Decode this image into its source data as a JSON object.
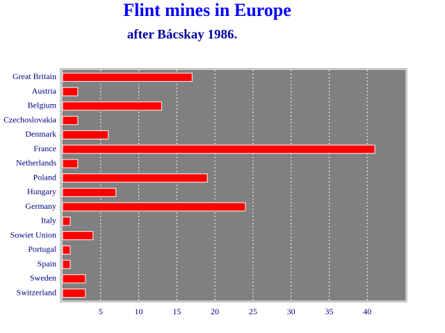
{
  "chart_data": {
    "type": "bar",
    "orientation": "horizontal",
    "title": "Flint mines in Europe",
    "subtitle": "after Bácskay 1986.",
    "categories": [
      "Great Britain",
      "Austria",
      "Belgium",
      "Czechoslovakia",
      "Denmark",
      "France",
      "Netherlands",
      "Poland",
      "Hungary",
      "Germany",
      "Italy",
      "Sowiet Union",
      "Portugal",
      "Spain",
      "Sweden",
      "Switzerland"
    ],
    "values": [
      17,
      2,
      13,
      2,
      6,
      41,
      2,
      19,
      7,
      24,
      1,
      4,
      1,
      1,
      3,
      3
    ],
    "color": "#ff0000",
    "xlim": [
      0,
      45
    ],
    "xticks": [
      5,
      10,
      15,
      20,
      25,
      30,
      35,
      40
    ],
    "grid": true
  }
}
